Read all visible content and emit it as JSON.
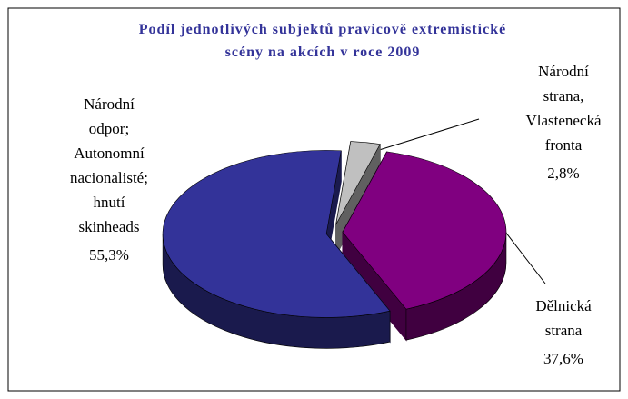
{
  "chart_data": {
    "type": "pie3d",
    "title": "Podíl jednotlivých subjektů pravicově extremistické\nscény na akcích  v roce 2009",
    "categories": [
      "Národní\nstrana,\nVlastenecká\nfronta",
      "Dělnická\nstrana",
      "Národní\nodpor;\nAutonomní\nnacionalisté;\nhnutí\nskinheads"
    ],
    "values": [
      2.8,
      37.6,
      55.3
    ],
    "value_labels": [
      "2,8%",
      "37,6%",
      "55,3%"
    ],
    "colors": [
      "#c0c0c0",
      "#800080",
      "#333399"
    ]
  }
}
